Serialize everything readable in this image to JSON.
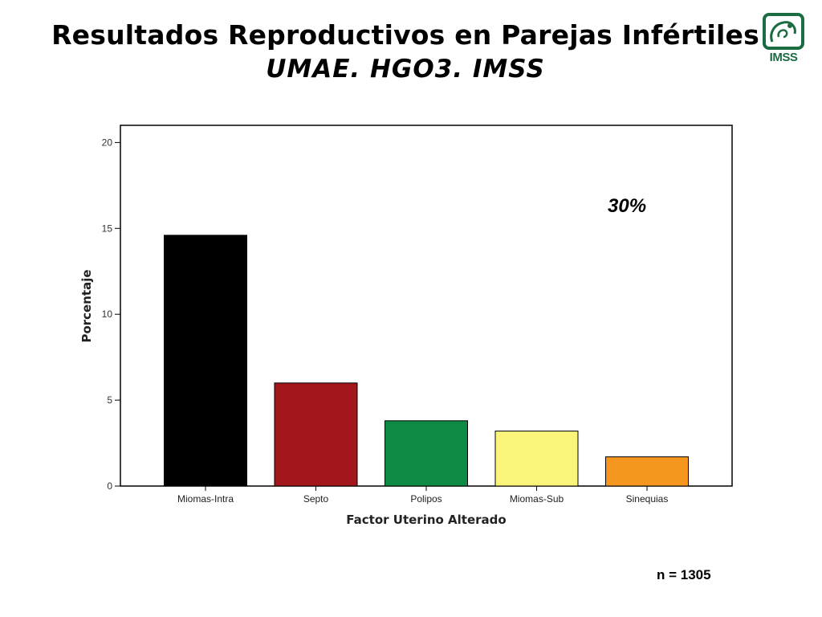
{
  "page": {
    "title_line1": "Resultados Reproductivos en Parejas Infértiles",
    "title_line2": "UMAE. HGO3. IMSS",
    "logo_text": "IMSS",
    "n_label": "n = 1305"
  },
  "chart_data": {
    "type": "bar",
    "categories": [
      "Miomas-Intra",
      "Septo",
      "Polipos",
      "Miomas-Sub",
      "Sinequias"
    ],
    "values": [
      14.6,
      6.0,
      3.8,
      3.2,
      1.7
    ],
    "colors": [
      "#000000",
      "#a3171c",
      "#0f8a45",
      "#fbf47b",
      "#f5961f"
    ],
    "xlabel": "Factor Uterino Alterado",
    "ylabel": "Porcentaje",
    "ylim": [
      0,
      21
    ],
    "yticks": [
      0,
      5,
      10,
      15,
      20
    ],
    "annotation": "30%",
    "grid": false,
    "legend": "none"
  }
}
